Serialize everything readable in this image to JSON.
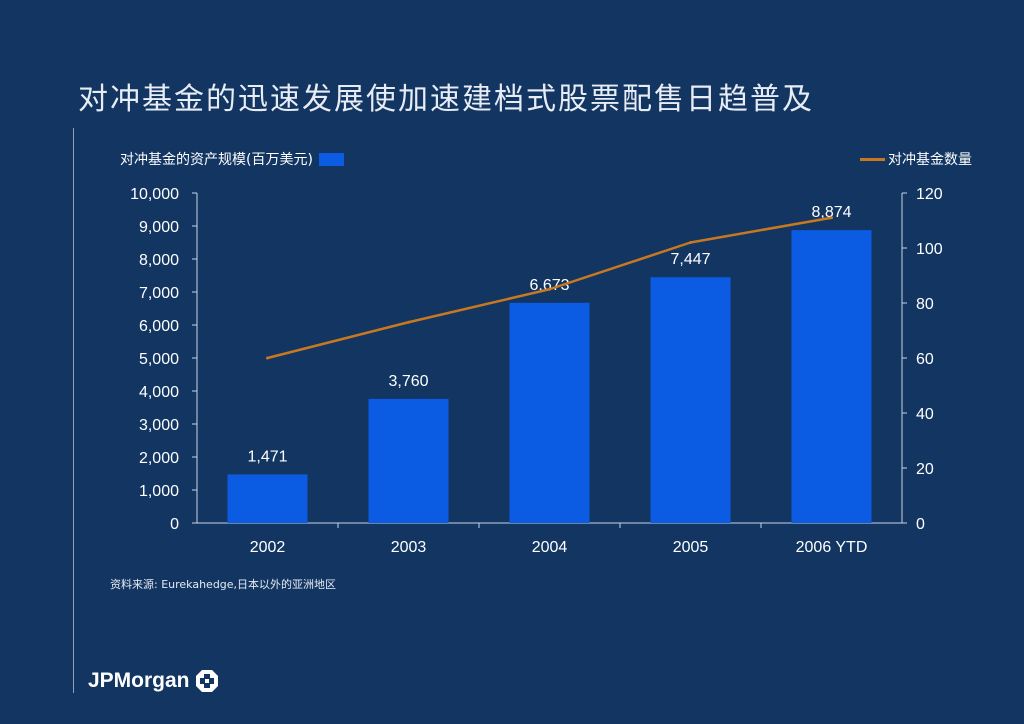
{
  "header": {
    "title": "对冲基金的迅速发展使加速建档式股票配售日趋普及"
  },
  "legend": {
    "bars_label": "对冲基金的资产规模(百万美元)",
    "line_label": "对冲基金数量"
  },
  "footer": {
    "source": "资料来源: Eurekahedge,日本以外的亚洲地区",
    "logo_text": "JPMorgan",
    "logo_icon": "octagon-logo-icon"
  },
  "colors": {
    "background": "#123562",
    "bar": "#0b5ce3",
    "line": "#c87820"
  },
  "chart_data": {
    "type": "bar",
    "title": "",
    "categories": [
      "2002",
      "2003",
      "2004",
      "2005",
      "2006 YTD"
    ],
    "series": [
      {
        "name": "对冲基金的资产规模(百万美元)",
        "type": "bar",
        "axis": "left",
        "values": [
          1471,
          3760,
          6673,
          7447,
          8874
        ],
        "labels": [
          "1,471",
          "3,760",
          "6,673",
          "7,447",
          "8,874"
        ]
      },
      {
        "name": "对冲基金数量",
        "type": "line",
        "axis": "right",
        "values": [
          60,
          73,
          85,
          102,
          111
        ]
      }
    ],
    "y_left": {
      "min": 0,
      "max": 10000,
      "ticks": [
        0,
        1000,
        2000,
        3000,
        4000,
        5000,
        6000,
        7000,
        8000,
        9000,
        10000
      ],
      "tick_labels": [
        "0",
        "1,000",
        "2,000",
        "3,000",
        "4,000",
        "5,000",
        "6,000",
        "7,000",
        "8,000",
        "9,000",
        "10,000"
      ]
    },
    "y_right": {
      "min": 0,
      "max": 120,
      "ticks": [
        0,
        20,
        40,
        60,
        80,
        100,
        120
      ],
      "tick_labels": [
        "0",
        "20",
        "40",
        "60",
        "80",
        "100",
        "120"
      ]
    },
    "grid": false,
    "legend": "top"
  }
}
